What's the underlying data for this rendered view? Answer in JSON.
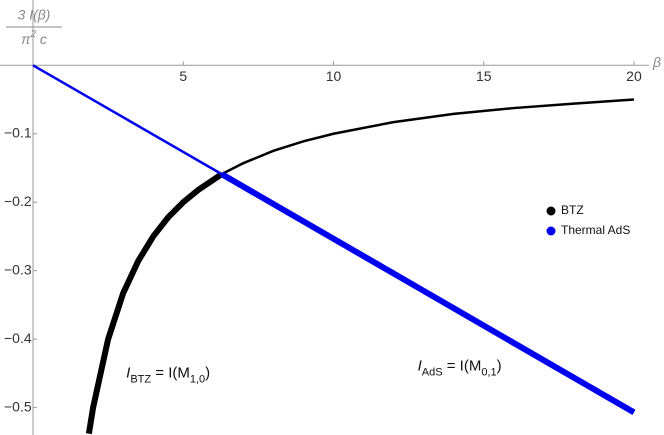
{
  "chart_data": {
    "type": "line",
    "y_label": {
      "numerator": "3 I(β)",
      "denominator": [
        {
          "text": "π"
        },
        {
          "text": "2",
          "sup": true
        },
        {
          "text": " c"
        }
      ]
    },
    "x_label": "β",
    "xlim": [
      0,
      20.5
    ],
    "ylim": [
      -0.54,
      0.015
    ],
    "xticks": [
      5,
      10,
      15,
      20
    ],
    "yticks": [
      {
        "value": -0.1,
        "label": "−0.1"
      },
      {
        "value": -0.2,
        "label": "−0.2"
      },
      {
        "value": -0.3,
        "label": "−0.3"
      },
      {
        "value": -0.4,
        "label": "−0.4"
      },
      {
        "value": -0.5,
        "label": "−0.5"
      }
    ],
    "series": [
      {
        "name": "BTZ",
        "color": "#000000",
        "segments": [
          {
            "width": 6,
            "x": [
              1.86,
              2,
              2.5,
              3,
              3.5,
              4,
              4.5,
              5,
              5.5,
              6.28
            ],
            "values": [
              -0.538,
              -0.5,
              -0.4,
              -0.333,
              -0.286,
              -0.25,
              -0.222,
              -0.2,
              -0.182,
              -0.159
            ]
          },
          {
            "width": 2.5,
            "x": [
              6.28,
              7,
              8,
              9,
              10,
              12,
              14,
              16,
              18,
              20
            ],
            "values": [
              -0.159,
              -0.143,
              -0.125,
              -0.111,
              -0.1,
              -0.083,
              -0.071,
              -0.0625,
              -0.056,
              -0.05
            ]
          }
        ]
      },
      {
        "name": "Thermal AdS",
        "color": "#0000ee",
        "segments": [
          {
            "width": 2.5,
            "x": [
              0,
              6.28
            ],
            "values": [
              0,
              -0.159
            ]
          },
          {
            "width": 6,
            "x": [
              6.28,
              20
            ],
            "values": [
              -0.159,
              -0.507
            ]
          }
        ]
      }
    ],
    "legend": "right",
    "annotations": [
      {
        "x": 3.1,
        "y": -0.45,
        "parts": [
          {
            "text": "I"
          },
          {
            "text": "BTZ",
            "sub": true
          },
          {
            "text": " = I(M"
          },
          {
            "text": "1,0",
            "sub": true
          },
          {
            "text": ")"
          }
        ]
      },
      {
        "x": 12.8,
        "y": -0.44,
        "parts": [
          {
            "text": "I"
          },
          {
            "text": "AdS",
            "sub": true
          },
          {
            "text": " = I(M"
          },
          {
            "text": "0,1",
            "sub": true
          },
          {
            "text": ")"
          }
        ]
      }
    ]
  }
}
